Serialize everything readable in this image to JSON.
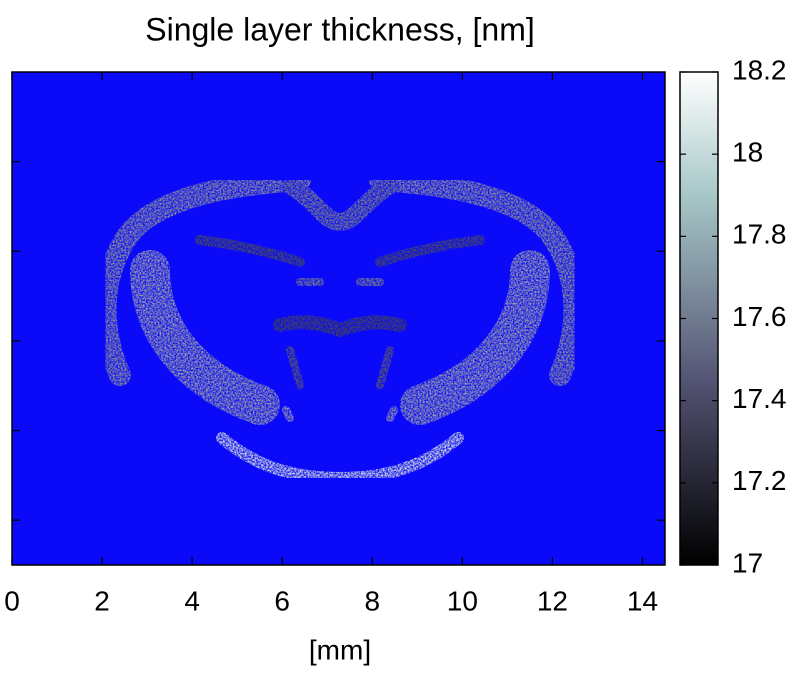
{
  "chart_data": {
    "type": "heatmap",
    "title": "Single layer thickness, [nm]",
    "xlabel": "[mm]",
    "xlim": [
      0,
      14.5
    ],
    "xticks": [
      0,
      2,
      4,
      6,
      8,
      10,
      12,
      14
    ],
    "ylim": [
      0,
      11
    ],
    "yticks": [
      1,
      3,
      5,
      7,
      9
    ],
    "colormap": "bone",
    "background_color": "#0a0af8",
    "clim": [
      17,
      18.2
    ],
    "cticks": [
      17,
      17.2,
      17.4,
      17.6,
      17.8,
      18,
      18.2
    ]
  }
}
